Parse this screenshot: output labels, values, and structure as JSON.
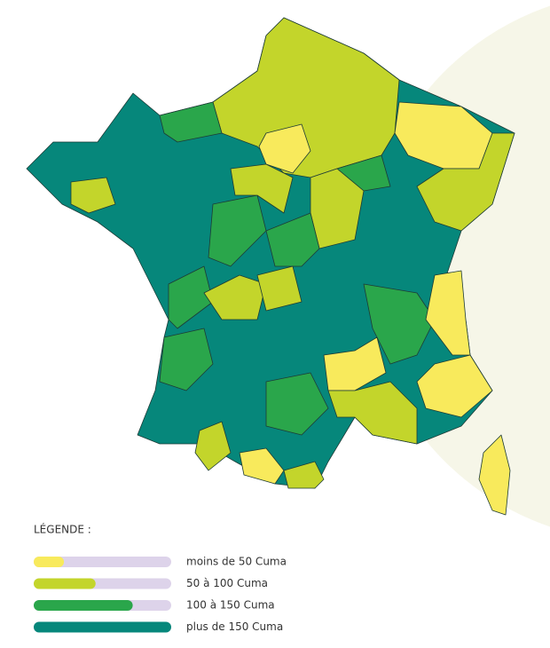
{
  "legend": {
    "title": "LÉGENDE :",
    "items": [
      {
        "label": "moins de 50 Cuma",
        "color": "#f8ea5c"
      },
      {
        "label": "50 à 100 Cuma",
        "color": "#c3d52b"
      },
      {
        "label": "100 à 150 Cuma",
        "color": "#2aa64b"
      },
      {
        "label": "plus de 150 Cuma",
        "color": "#06877b"
      }
    ]
  }
}
